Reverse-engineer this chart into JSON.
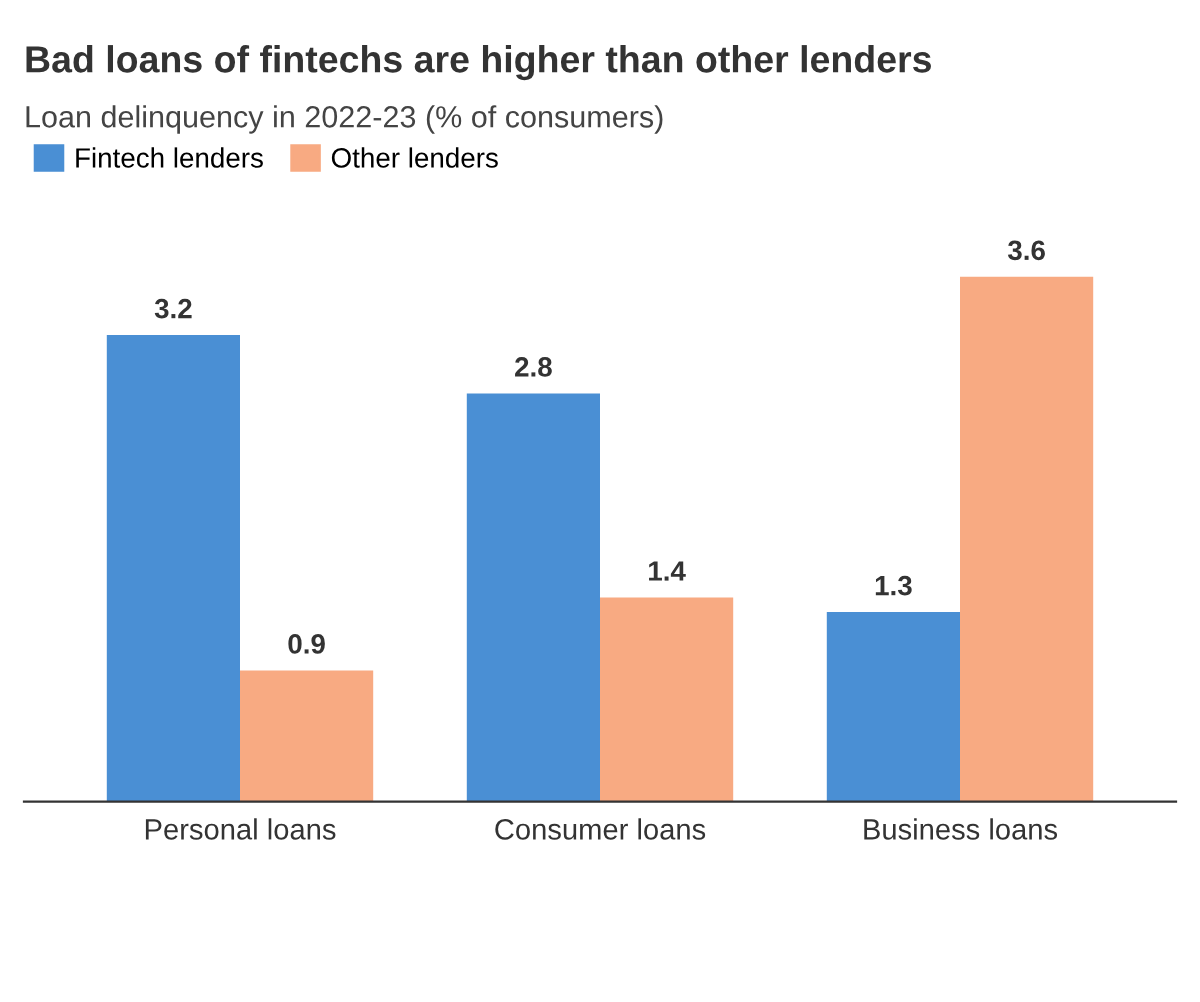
{
  "chart_data": {
    "type": "bar",
    "title": "Bad loans of fintechs are higher than other lenders",
    "subtitle": "Loan delinquency in 2022-23 (% of consumers)",
    "categories": [
      "Personal loans",
      "Consumer loans",
      "Business loans"
    ],
    "series": [
      {
        "name": "Fintech lenders",
        "color": "#4a8fd4",
        "values": [
          3.2,
          2.8,
          1.3
        ]
      },
      {
        "name": "Other lenders",
        "color": "#f8aa82",
        "values": [
          0.9,
          1.4,
          3.6
        ]
      }
    ],
    "data_labels": true,
    "legend": "top left",
    "grid": false
  }
}
